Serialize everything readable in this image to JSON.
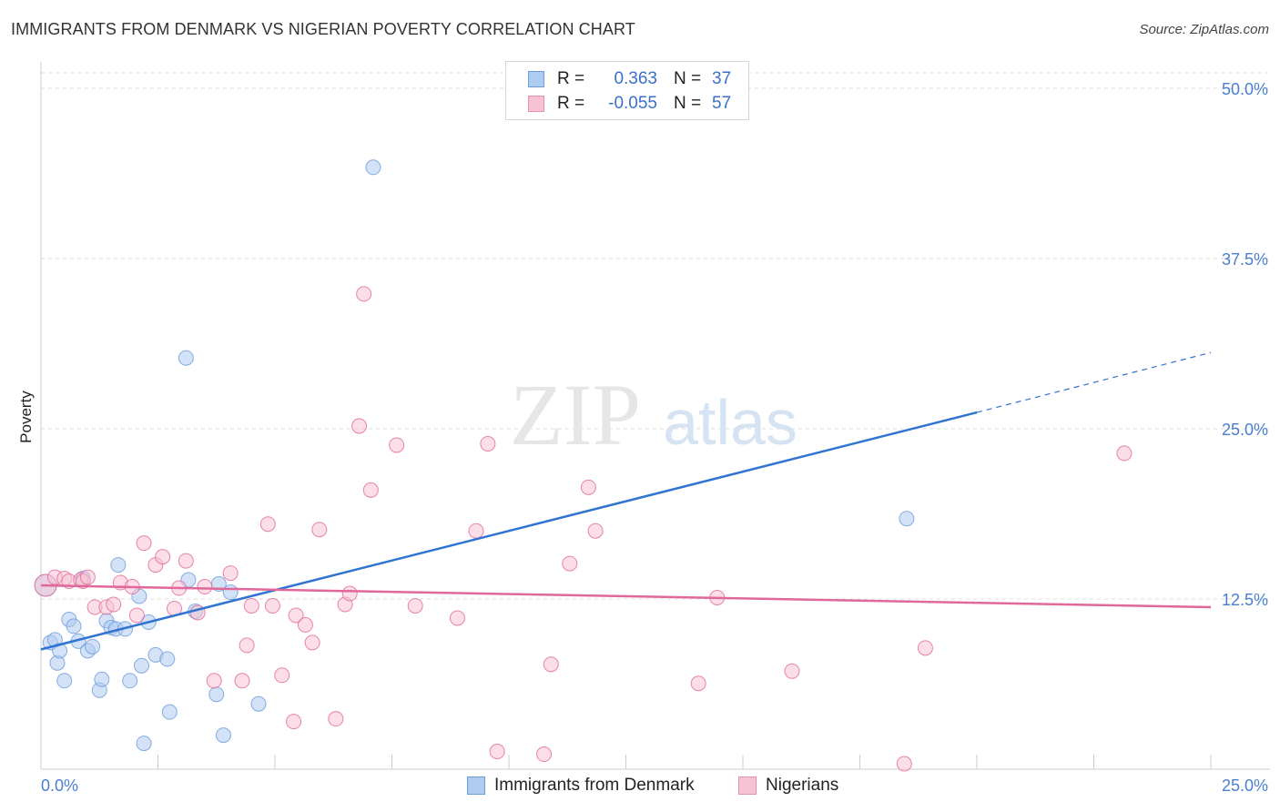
{
  "title": "IMMIGRANTS FROM DENMARK VS NIGERIAN POVERTY CORRELATION CHART",
  "source": "Source: ZipAtlas.com",
  "watermark": {
    "zip": "ZIP",
    "atlas": "atlas"
  },
  "legend": {
    "rows": [
      {
        "r_label": "R =",
        "r_value": "0.363",
        "n_label": "N =",
        "n_value": "37",
        "color": "#aecbf0",
        "border": "#6c9bd8"
      },
      {
        "r_label": "R =",
        "r_value": "-0.055",
        "n_label": "N =",
        "n_value": "57",
        "color": "#f7c3d3",
        "border": "#e391ad"
      }
    ]
  },
  "bottom_legend": [
    {
      "label": "Immigrants from Denmark",
      "color": "#aecbf0",
      "border": "#6c9bd8"
    },
    {
      "label": "Nigerians",
      "color": "#f7c3d3",
      "border": "#e391ad"
    }
  ],
  "chart_data": {
    "type": "scatter",
    "title": "IMMIGRANTS FROM DENMARK VS NIGERIAN POVERTY CORRELATION CHART",
    "xlabel": "",
    "ylabel": "Poverty",
    "xlim": [
      0,
      25
    ],
    "ylim": [
      0,
      50
    ],
    "x_tick_labels": [
      "0.0%",
      "25.0%"
    ],
    "y_ticks": [
      12.5,
      25.0,
      37.5,
      50.0
    ],
    "y_tick_labels": [
      "12.5%",
      "25.0%",
      "37.5%",
      "50.0%"
    ],
    "grid": true,
    "series": [
      {
        "name": "Immigrants from Denmark",
        "color": "#6c9bd8",
        "fill": "#aecbf0",
        "trend": {
          "x0": 0,
          "y0": 8.8,
          "x1": 20,
          "y1": 26.2,
          "dash_to": 25,
          "dash_y": 30.6
        },
        "points": [
          [
            0.1,
            13.5
          ],
          [
            0.2,
            9.3
          ],
          [
            0.3,
            9.5
          ],
          [
            0.35,
            7.8
          ],
          [
            0.4,
            8.7
          ],
          [
            0.5,
            6.5
          ],
          [
            0.6,
            11.0
          ],
          [
            0.7,
            10.5
          ],
          [
            0.8,
            9.4
          ],
          [
            0.9,
            14.0
          ],
          [
            1.0,
            8.7
          ],
          [
            1.1,
            9.0
          ],
          [
            1.25,
            5.8
          ],
          [
            1.3,
            6.6
          ],
          [
            1.4,
            10.9
          ],
          [
            1.5,
            10.4
          ],
          [
            1.6,
            10.3
          ],
          [
            1.65,
            15.0
          ],
          [
            1.8,
            10.3
          ],
          [
            1.9,
            6.5
          ],
          [
            2.1,
            12.7
          ],
          [
            2.15,
            7.6
          ],
          [
            2.2,
            1.9
          ],
          [
            2.3,
            10.8
          ],
          [
            2.45,
            8.4
          ],
          [
            2.7,
            8.1
          ],
          [
            2.75,
            4.2
          ],
          [
            3.1,
            30.2
          ],
          [
            3.15,
            13.9
          ],
          [
            3.3,
            11.6
          ],
          [
            3.75,
            5.5
          ],
          [
            3.8,
            13.6
          ],
          [
            3.9,
            2.5
          ],
          [
            4.05,
            13.0
          ],
          [
            4.65,
            4.8
          ],
          [
            7.1,
            44.2
          ],
          [
            18.5,
            18.4
          ]
        ]
      },
      {
        "name": "Nigerians",
        "color": "#e0689a",
        "fill": "#f7c3d3",
        "trend": {
          "x0": 0,
          "y0": 13.5,
          "x1": 25,
          "y1": 11.9
        },
        "points": [
          [
            0.1,
            13.5
          ],
          [
            0.3,
            14.1
          ],
          [
            0.5,
            14.0
          ],
          [
            0.6,
            13.8
          ],
          [
            0.85,
            13.9
          ],
          [
            0.9,
            13.8
          ],
          [
            1.0,
            14.1
          ],
          [
            1.15,
            11.9
          ],
          [
            1.4,
            11.9
          ],
          [
            1.55,
            12.1
          ],
          [
            1.7,
            13.7
          ],
          [
            1.95,
            13.4
          ],
          [
            2.05,
            11.3
          ],
          [
            2.2,
            16.6
          ],
          [
            2.45,
            15.0
          ],
          [
            2.6,
            15.6
          ],
          [
            2.85,
            11.8
          ],
          [
            2.95,
            13.3
          ],
          [
            3.1,
            15.3
          ],
          [
            3.35,
            11.5
          ],
          [
            3.5,
            13.4
          ],
          [
            3.7,
            6.5
          ],
          [
            4.05,
            14.4
          ],
          [
            4.3,
            6.5
          ],
          [
            4.4,
            9.1
          ],
          [
            4.5,
            12.0
          ],
          [
            4.85,
            18.0
          ],
          [
            4.95,
            12.0
          ],
          [
            5.15,
            6.9
          ],
          [
            5.4,
            3.5
          ],
          [
            5.45,
            11.3
          ],
          [
            5.65,
            10.6
          ],
          [
            5.8,
            9.3
          ],
          [
            5.95,
            17.6
          ],
          [
            6.3,
            3.7
          ],
          [
            6.5,
            12.1
          ],
          [
            6.6,
            12.9
          ],
          [
            6.8,
            25.2
          ],
          [
            6.9,
            34.9
          ],
          [
            7.05,
            20.5
          ],
          [
            7.6,
            23.8
          ],
          [
            8.0,
            12.0
          ],
          [
            8.9,
            11.1
          ],
          [
            9.3,
            17.5
          ],
          [
            9.55,
            23.9
          ],
          [
            9.75,
            1.3
          ],
          [
            10.75,
            1.1
          ],
          [
            10.9,
            7.7
          ],
          [
            11.3,
            15.1
          ],
          [
            11.7,
            20.7
          ],
          [
            11.85,
            17.5
          ],
          [
            14.05,
            6.3
          ],
          [
            14.45,
            12.6
          ],
          [
            16.05,
            7.2
          ],
          [
            18.45,
            0.4
          ],
          [
            18.9,
            8.9
          ],
          [
            23.15,
            23.2
          ]
        ]
      }
    ]
  }
}
